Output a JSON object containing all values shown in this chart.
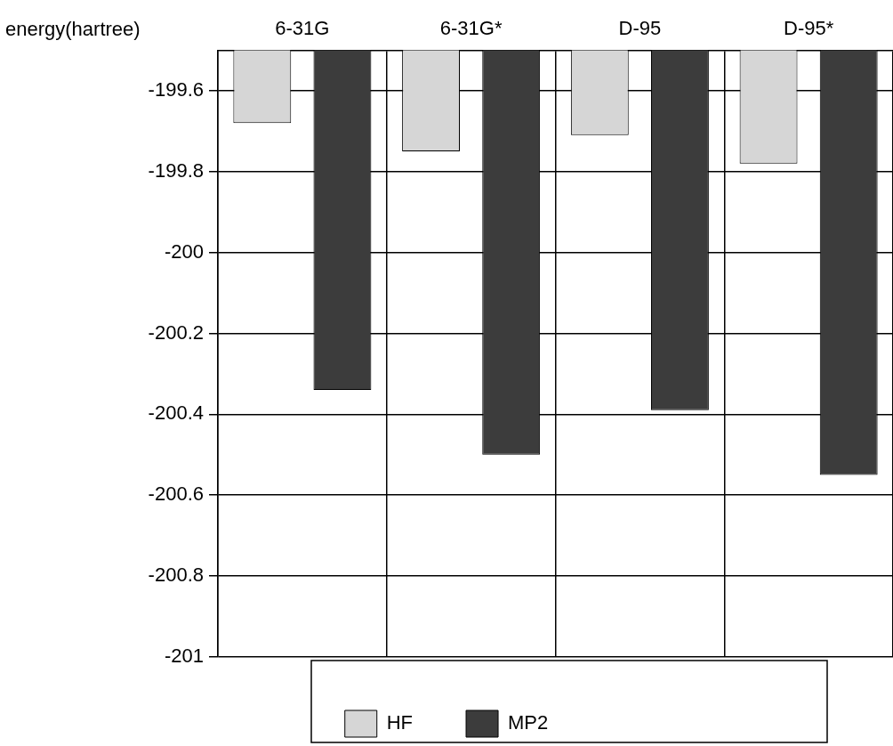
{
  "chart_data": {
    "type": "bar",
    "ylabel": "energy(hartree)",
    "categories": [
      "6-31G",
      "6-31G*",
      "D-95",
      "D-95*"
    ],
    "series": [
      {
        "name": "HF",
        "color": "#d6d6d6",
        "values": [
          -199.68,
          -199.75,
          -199.71,
          -199.78
        ]
      },
      {
        "name": "MP2",
        "color": "#3c3c3c",
        "values": [
          -200.34,
          -200.5,
          -200.39,
          -200.55
        ]
      }
    ],
    "ylim": [
      -201,
      -199.5
    ],
    "yticks": [
      -201,
      -200.8,
      -200.6,
      -200.4,
      -200.2,
      -200,
      -199.8,
      -199.6
    ],
    "grid": true,
    "legend": "bottom"
  }
}
